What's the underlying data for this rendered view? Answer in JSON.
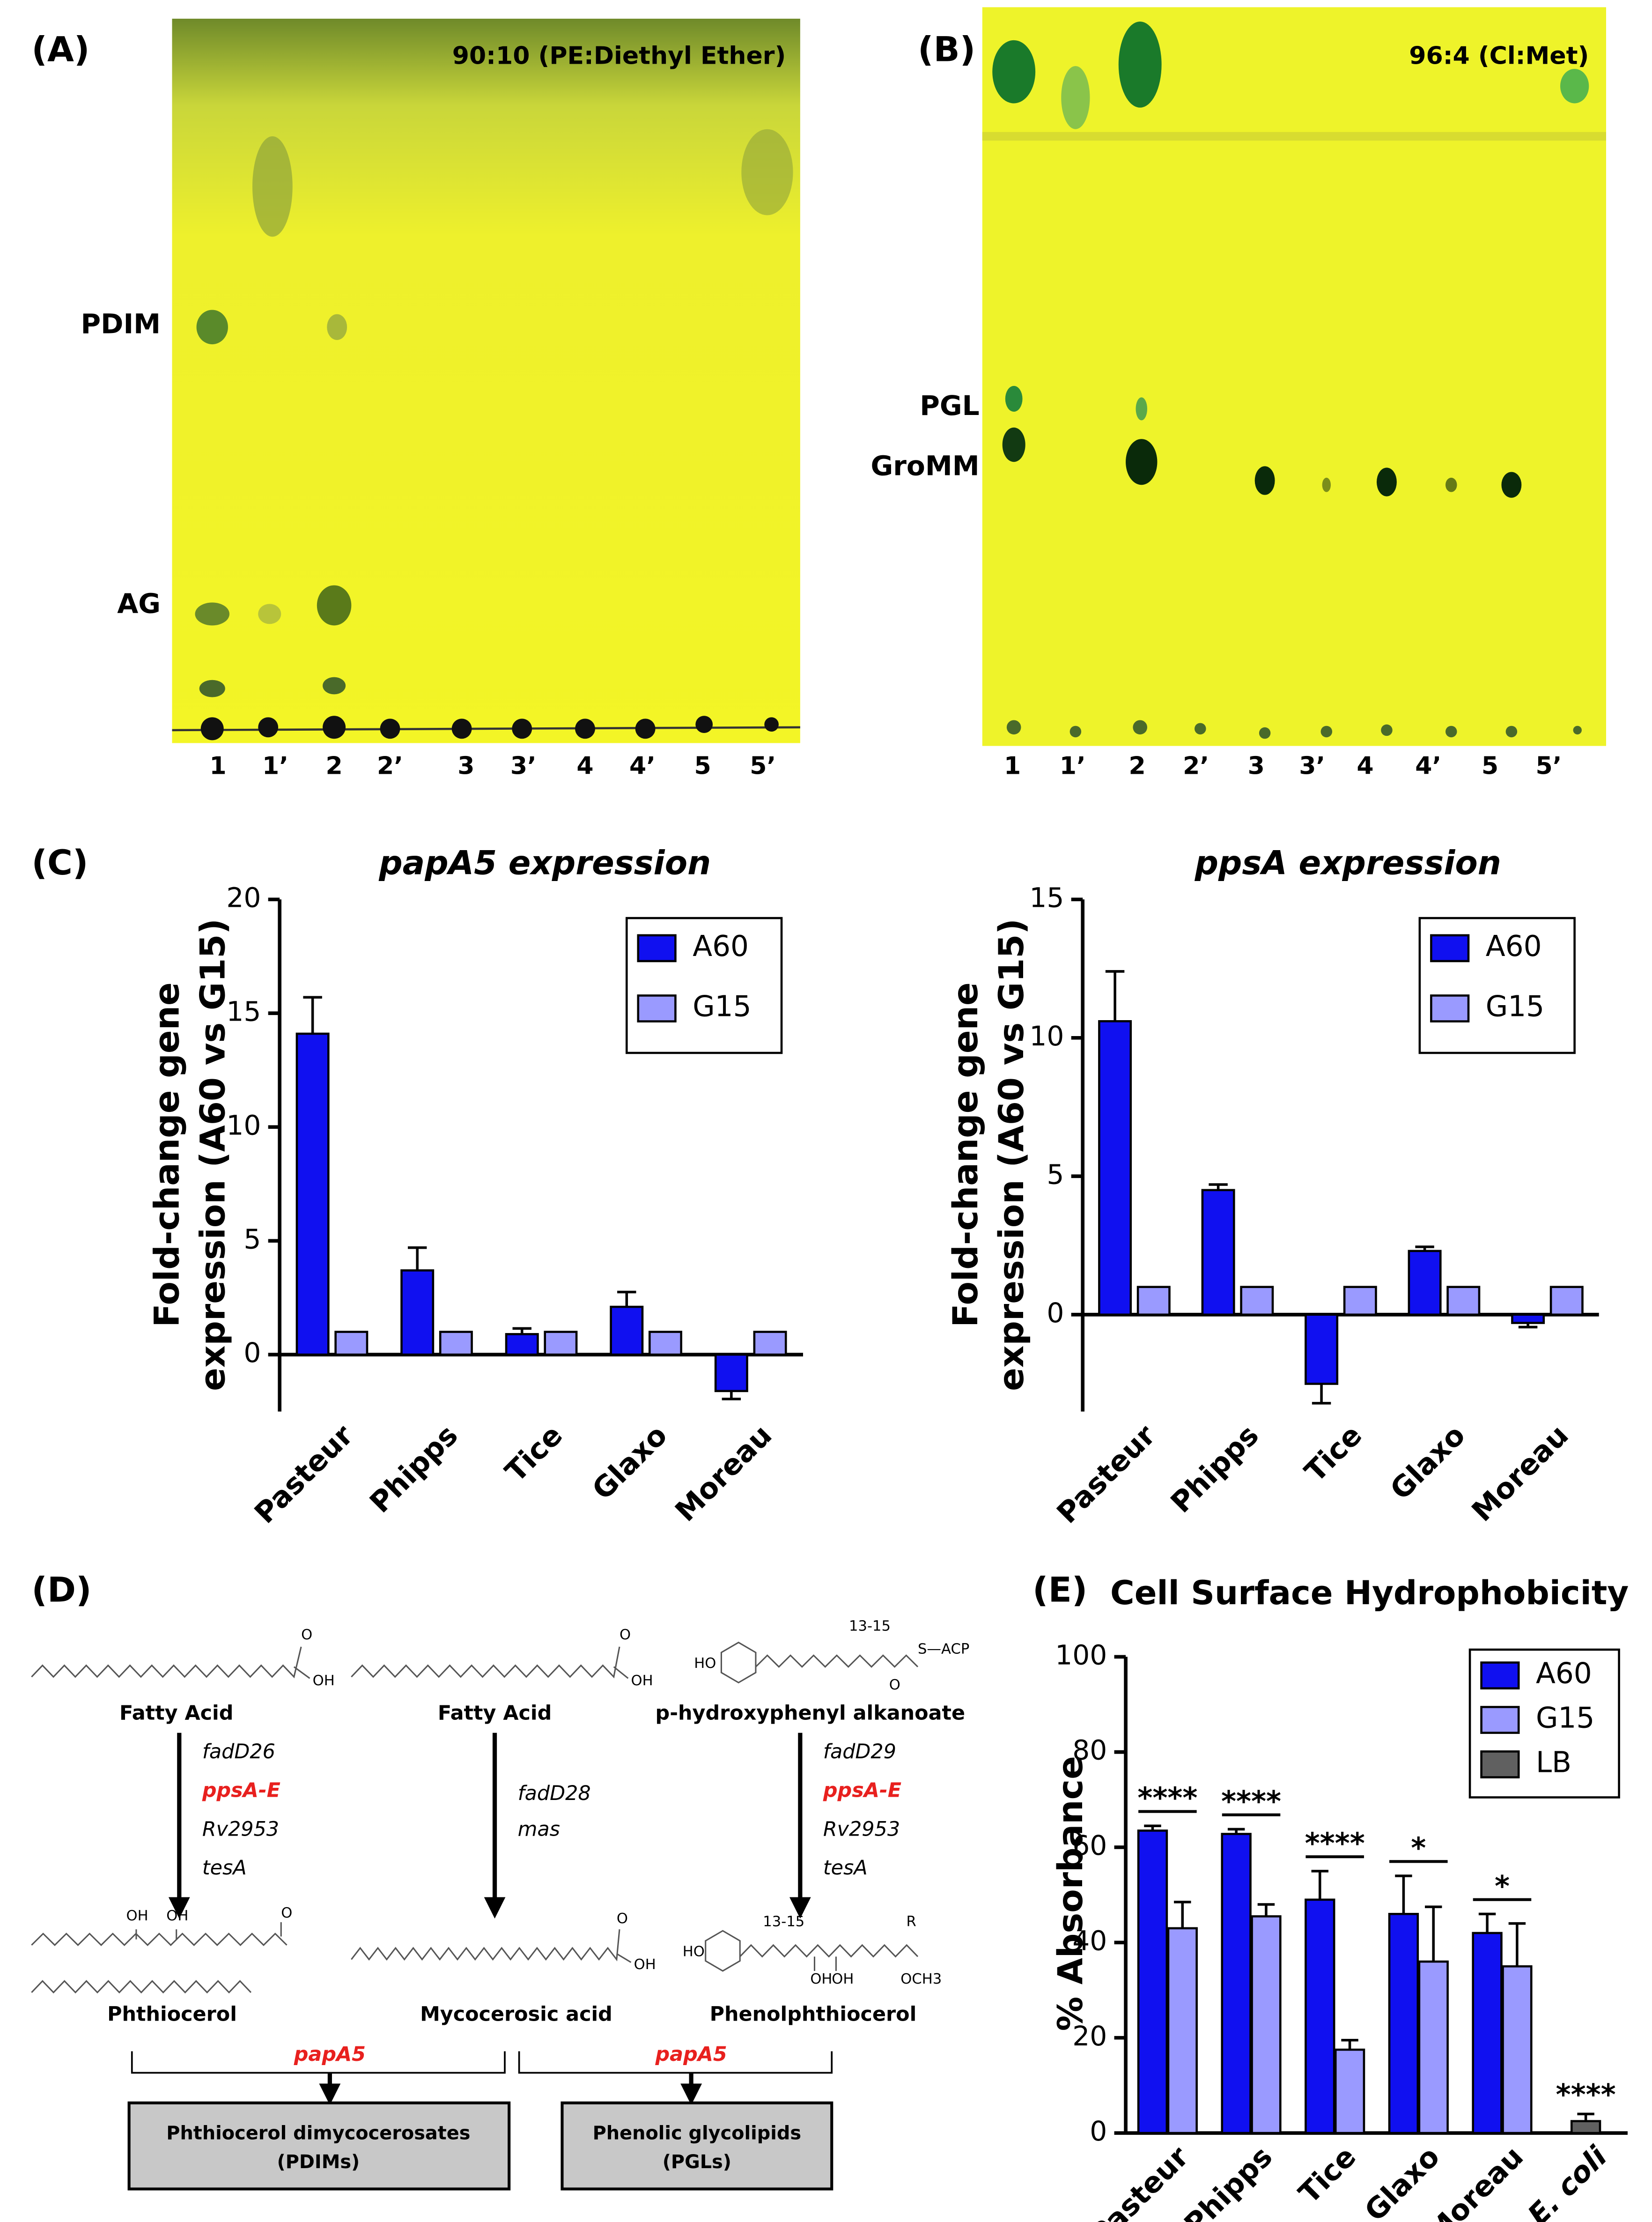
{
  "panels": {
    "A": {
      "label": "(A)",
      "solvent": "90:10 (PE:Diethyl Ether)",
      "spots": [
        "PDIM",
        "AG"
      ],
      "lanes": [
        "1",
        "1’",
        "2",
        "2’",
        "3",
        "3’",
        "4",
        "4’",
        "5",
        "5’"
      ]
    },
    "B": {
      "label": "(B)",
      "solvent": "96:4 (Cl:Met)",
      "spots": [
        "PGL",
        "GroMM"
      ],
      "lanes": [
        "1",
        "1’",
        "2",
        "2’",
        "3",
        "3’",
        "4",
        "4’",
        "5",
        "5’"
      ]
    },
    "C": {
      "label": "(C)"
    },
    "E": {
      "label": "(E)"
    }
  },
  "chart_data": [
    {
      "type": "bar",
      "title": "papA5 expression",
      "ylabel": [
        "Fold-change gene",
        "expression (A60 vs G15)"
      ],
      "categories": [
        "Pasteur",
        "Phipps",
        "Tice",
        "Glaxo",
        "Moreau"
      ],
      "series": [
        {
          "name": "A60",
          "color": "#1010f0",
          "values": [
            14.1,
            3.7,
            0.9,
            2.1,
            -1.6
          ],
          "errors": [
            1.6,
            1.0,
            0.25,
            0.65,
            0.35
          ]
        },
        {
          "name": "G15",
          "color": "#9a9aff",
          "values": [
            1,
            1,
            1,
            1,
            1
          ]
        }
      ],
      "ylim": [
        -2.5,
        20
      ],
      "yticks": [
        0,
        5,
        10,
        15,
        20
      ],
      "legend": "upper right"
    },
    {
      "type": "bar",
      "title": "ppsA expression",
      "ylabel": [
        "Fold-change gene",
        "expression (A60 vs G15)"
      ],
      "categories": [
        "Pasteur",
        "Phipps",
        "Tice",
        "Glaxo",
        "Moreau"
      ],
      "series": [
        {
          "name": "A60",
          "color": "#1010f0",
          "values": [
            10.6,
            4.5,
            -2.5,
            2.3,
            -0.3
          ],
          "errors": [
            1.8,
            0.2,
            0.7,
            0.15,
            0.15
          ]
        },
        {
          "name": "G15",
          "color": "#9a9aff",
          "values": [
            1,
            1,
            1,
            1,
            1
          ]
        }
      ],
      "ylim": [
        -3.5,
        15
      ],
      "yticks": [
        0,
        5,
        10,
        15
      ],
      "legend": "upper right"
    },
    {
      "type": "bar",
      "title": "Cell Surface Hydrophobicity",
      "ylabel": "% Absorbance",
      "categories": [
        "Pasteur",
        "Phipps",
        "Tice",
        "Glaxo",
        "Moreau",
        "E. coli"
      ],
      "series": [
        {
          "name": "A60",
          "color": "#1010f0",
          "values": [
            63.5,
            62.8,
            49,
            46,
            42,
            null
          ],
          "errors": [
            1,
            1,
            6,
            8,
            4,
            null
          ]
        },
        {
          "name": "G15",
          "color": "#9a9aff",
          "values": [
            43,
            45.5,
            17.5,
            36,
            35,
            null
          ],
          "errors": [
            5.5,
            2.5,
            2,
            11.5,
            9,
            null
          ]
        },
        {
          "name": "LB",
          "color": "#606060",
          "values": [
            null,
            null,
            null,
            null,
            null,
            2.5
          ],
          "errors": [
            null,
            null,
            null,
            null,
            null,
            1.5
          ]
        }
      ],
      "annotations": [
        "****",
        "****",
        "****",
        "*",
        "*",
        "****"
      ],
      "ylim": [
        0,
        100
      ],
      "yticks": [
        0,
        20,
        40,
        60,
        80,
        100
      ],
      "legend": "upper right"
    }
  ],
  "diagram": {
    "label": "(D)",
    "columns": [
      {
        "substrate": "Fatty Acid",
        "substrate_atoms": [
          "O",
          "OH"
        ],
        "genes": [
          "fadD26",
          "ppsA-E",
          "Rv2953",
          "tesA"
        ],
        "product": "Phthiocerol",
        "product_atoms": [
          "OH",
          "OH",
          "O"
        ]
      },
      {
        "substrate": "Fatty Acid",
        "substrate_atoms": [
          "O",
          "OH"
        ],
        "genes": [
          "fadD28",
          "mas"
        ],
        "product": "Mycocerosic acid",
        "product_atoms": [
          "O",
          "OH"
        ]
      },
      {
        "substrate": "p-hydroxyphenyl alkanoate",
        "substrate_atoms": [
          "HO",
          "13-15",
          "S—ACP",
          "O"
        ],
        "genes": [
          "fadD29",
          "ppsA-E",
          "Rv2953",
          "tesA"
        ],
        "product": "Phenolphthiocerol",
        "product_atoms": [
          "HO",
          "13-15",
          "OH",
          "OH",
          "R",
          "OCH3"
        ]
      }
    ],
    "links": [
      {
        "enzyme": "papA5",
        "product": [
          "Phthiocerol dimycocerosates",
          "(PDIMs)"
        ]
      },
      {
        "enzyme": "papA5",
        "product": [
          "Phenolic glycolipids",
          "(PGLs)"
        ]
      }
    ]
  }
}
